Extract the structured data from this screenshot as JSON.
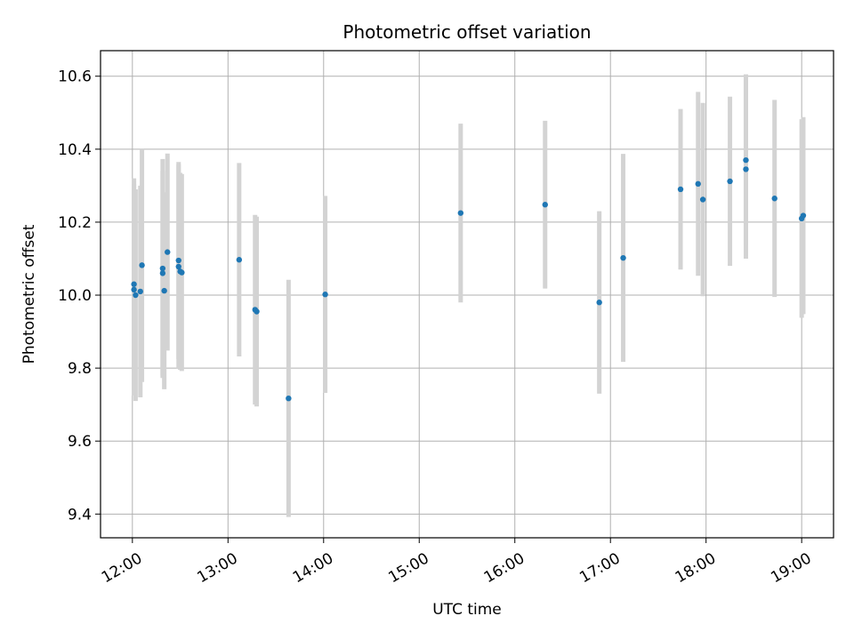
{
  "chart_data": {
    "type": "scatter",
    "title": "Photometric offset variation",
    "xlabel": "UTC time",
    "ylabel": "Photometric offset",
    "x_ticks": [
      "12:00",
      "13:00",
      "14:00",
      "15:00",
      "16:00",
      "17:00",
      "18:00",
      "19:00"
    ],
    "y_ticks": [
      "9.4",
      "9.6",
      "9.8",
      "10.0",
      "10.2",
      "10.4",
      "10.6"
    ],
    "xlim": [
      "11:40",
      "19:20"
    ],
    "ylim": [
      9.335,
      10.67
    ],
    "grid": true,
    "point_color": "#1f77b4",
    "errorbar_color": "#d3d3d3",
    "points": [
      {
        "time": "12:01",
        "y": 10.03,
        "err": 0.29
      },
      {
        "time": "12:01",
        "y": 10.015,
        "err": 0.29
      },
      {
        "time": "12:02",
        "y": 10.0,
        "err": 0.29
      },
      {
        "time": "12:05",
        "y": 10.01,
        "err": 0.29
      },
      {
        "time": "12:06",
        "y": 10.082,
        "err": 0.32
      },
      {
        "time": "12:19",
        "y": 10.06,
        "err": 0.28
      },
      {
        "time": "12:19",
        "y": 10.073,
        "err": 0.3
      },
      {
        "time": "12:20",
        "y": 10.012,
        "err": 0.27
      },
      {
        "time": "12:22",
        "y": 10.118,
        "err": 0.27
      },
      {
        "time": "12:29",
        "y": 10.095,
        "err": 0.27
      },
      {
        "time": "12:29",
        "y": 10.078,
        "err": 0.28
      },
      {
        "time": "12:30",
        "y": 10.065,
        "err": 0.27
      },
      {
        "time": "12:31",
        "y": 10.062,
        "err": 0.27
      },
      {
        "time": "13:07",
        "y": 10.097,
        "err": 0.265
      },
      {
        "time": "13:17",
        "y": 9.96,
        "err": 0.26
      },
      {
        "time": "13:18",
        "y": 9.955,
        "err": 0.26
      },
      {
        "time": "13:38",
        "y": 9.717,
        "err": 0.325
      },
      {
        "time": "14:01",
        "y": 10.002,
        "err": 0.27
      },
      {
        "time": "15:26",
        "y": 10.225,
        "err": 0.245
      },
      {
        "time": "16:19",
        "y": 10.248,
        "err": 0.23
      },
      {
        "time": "16:53",
        "y": 9.98,
        "err": 0.25
      },
      {
        "time": "17:08",
        "y": 10.102,
        "err": 0.285
      },
      {
        "time": "17:44",
        "y": 10.29,
        "err": 0.22
      },
      {
        "time": "17:55",
        "y": 10.305,
        "err": 0.252
      },
      {
        "time": "17:58",
        "y": 10.262,
        "err": 0.265
      },
      {
        "time": "18:15",
        "y": 10.312,
        "err": 0.232
      },
      {
        "time": "18:25",
        "y": 10.37,
        "err": 0.235
      },
      {
        "time": "18:25",
        "y": 10.345,
        "err": 0.245
      },
      {
        "time": "18:43",
        "y": 10.265,
        "err": 0.27
      },
      {
        "time": "19:00",
        "y": 10.21,
        "err": 0.272
      },
      {
        "time": "19:01",
        "y": 10.218,
        "err": 0.27
      }
    ]
  }
}
